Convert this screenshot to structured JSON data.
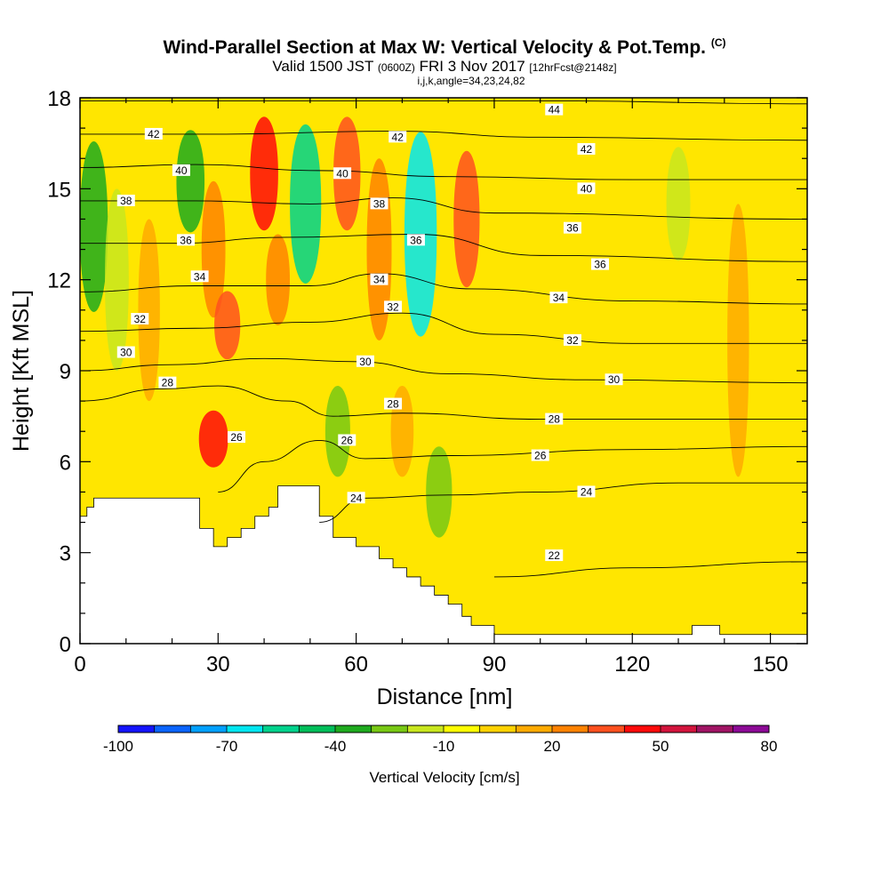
{
  "header": {
    "title": "Wind-Parallel Section at Max W: Vertical Velocity & Pot.Temp.",
    "title_mark": "(C)",
    "valid_prefix": "Valid 1500 JST",
    "valid_utc": "(0600Z)",
    "valid_date": "FRI 3 Nov 2017",
    "forecast": "[12hrFcst@2148z]",
    "grid_info": "i,j,k,angle=34,23,24,82"
  },
  "chart_data": {
    "type": "heatmap",
    "xlabel": "Distance [nm]",
    "ylabel": "Height [Kft MSL]",
    "xlim": [
      0,
      158
    ],
    "ylim": [
      0,
      18
    ],
    "x_ticks": [
      0,
      30,
      60,
      90,
      120,
      150
    ],
    "y_ticks": [
      0,
      3,
      6,
      9,
      12,
      15,
      18
    ],
    "colorbar": {
      "label": "Vertical Velocity [cm/s]",
      "range": [
        -100,
        80
      ],
      "tick_labels": [
        "-100",
        "-70",
        "-40",
        "-10",
        "20",
        "50",
        "80"
      ],
      "colors": [
        "#1414ff",
        "#0a64ff",
        "#00a0ff",
        "#00e6f0",
        "#00d28c",
        "#00be5a",
        "#1eaa1e",
        "#78c814",
        "#c8e61e",
        "#ffff00",
        "#ffd200",
        "#ffaa00",
        "#ff8200",
        "#ff501e",
        "#ff0a0a",
        "#d2143c",
        "#a01464",
        "#8c0a96"
      ]
    },
    "terrain_profile": [
      [
        0,
        4.2
      ],
      [
        1.5,
        4.2
      ],
      [
        1.5,
        4.5
      ],
      [
        3,
        4.5
      ],
      [
        3,
        4.8
      ],
      [
        26,
        4.8
      ],
      [
        26,
        3.8
      ],
      [
        29,
        3.8
      ],
      [
        29,
        3.2
      ],
      [
        32,
        3.2
      ],
      [
        32,
        3.5
      ],
      [
        35,
        3.5
      ],
      [
        35,
        3.8
      ],
      [
        38,
        3.8
      ],
      [
        38,
        4.2
      ],
      [
        41,
        4.2
      ],
      [
        41,
        4.5
      ],
      [
        43,
        4.5
      ],
      [
        43,
        5.2
      ],
      [
        52,
        5.2
      ],
      [
        52,
        4.2
      ],
      [
        55,
        4.2
      ],
      [
        55,
        3.5
      ],
      [
        60,
        3.5
      ],
      [
        60,
        3.2
      ],
      [
        65,
        3.2
      ],
      [
        65,
        2.8
      ],
      [
        68,
        2.8
      ],
      [
        68,
        2.5
      ],
      [
        71,
        2.5
      ],
      [
        71,
        2.2
      ],
      [
        74,
        2.2
      ],
      [
        74,
        1.9
      ],
      [
        77,
        1.9
      ],
      [
        77,
        1.6
      ],
      [
        80,
        1.6
      ],
      [
        80,
        1.3
      ],
      [
        83,
        1.3
      ],
      [
        83,
        0.9
      ],
      [
        85,
        0.9
      ],
      [
        85,
        0.6
      ],
      [
        90,
        0.6
      ],
      [
        90,
        0.3
      ],
      [
        133,
        0.3
      ],
      [
        133,
        0.6
      ],
      [
        139,
        0.6
      ],
      [
        139,
        0.3
      ],
      [
        158,
        0.3
      ]
    ],
    "velocity_field": [
      {
        "x": 3,
        "y_range": [
          10,
          17.5
        ],
        "value": -40
      },
      {
        "x": 8,
        "y_range": [
          8,
          16
        ],
        "value": -20
      },
      {
        "x": 15,
        "y_range": [
          7,
          15
        ],
        "value": 10
      },
      {
        "x": 24,
        "y_range": [
          13,
          17.5
        ],
        "value": -40
      },
      {
        "x": 29,
        "y_range": [
          10,
          16
        ],
        "value": 20
      },
      {
        "x": 29,
        "y_range": [
          5.5,
          8
        ],
        "value": 45
      },
      {
        "x": 32,
        "y_range": [
          9,
          12
        ],
        "value": 30
      },
      {
        "x": 40,
        "y_range": [
          13,
          18
        ],
        "value": 40
      },
      {
        "x": 43,
        "y_range": [
          10,
          14
        ],
        "value": 20
      },
      {
        "x": 49,
        "y_range": [
          11,
          18
        ],
        "value": -55
      },
      {
        "x": 58,
        "y_range": [
          13,
          18
        ],
        "value": 35
      },
      {
        "x": 56,
        "y_range": [
          5,
          9
        ],
        "value": -25
      },
      {
        "x": 65,
        "y_range": [
          9,
          17
        ],
        "value": 25
      },
      {
        "x": 70,
        "y_range": [
          5,
          9
        ],
        "value": 15
      },
      {
        "x": 74,
        "y_range": [
          9,
          18
        ],
        "value": -70
      },
      {
        "x": 84,
        "y_range": [
          11,
          17
        ],
        "value": 30
      },
      {
        "x": 78,
        "y_range": [
          3,
          7
        ],
        "value": -30
      },
      {
        "x": 130,
        "y_range": [
          12,
          17
        ],
        "value": -20
      },
      {
        "x": 143,
        "y_range": [
          4,
          16
        ],
        "value": 10
      }
    ],
    "theta_contours": [
      {
        "label": "22",
        "points": [
          [
            90,
            2.2
          ],
          [
            120,
            2.5
          ],
          [
            158,
            2.7
          ]
        ]
      },
      {
        "label": "24",
        "points": [
          [
            52,
            4.0
          ],
          [
            62,
            4.8
          ],
          [
            80,
            4.9
          ],
          [
            100,
            5.0
          ],
          [
            130,
            5.3
          ],
          [
            158,
            5.3
          ]
        ]
      },
      {
        "label": "26",
        "points": [
          [
            30,
            5.0
          ],
          [
            40,
            6.0
          ],
          [
            52,
            6.7
          ],
          [
            62,
            6.1
          ],
          [
            80,
            6.2
          ],
          [
            120,
            6.4
          ],
          [
            158,
            6.5
          ]
        ]
      },
      {
        "label": "28",
        "points": [
          [
            0,
            8.0
          ],
          [
            18,
            8.4
          ],
          [
            30,
            8.5
          ],
          [
            45,
            8.0
          ],
          [
            55,
            7.5
          ],
          [
            70,
            7.6
          ],
          [
            100,
            7.4
          ],
          [
            158,
            7.4
          ]
        ]
      },
      {
        "label": "30",
        "points": [
          [
            0,
            9.0
          ],
          [
            20,
            9.2
          ],
          [
            40,
            9.4
          ],
          [
            60,
            9.3
          ],
          [
            80,
            8.9
          ],
          [
            110,
            8.7
          ],
          [
            158,
            8.6
          ]
        ]
      },
      {
        "label": "32",
        "points": [
          [
            0,
            10.3
          ],
          [
            25,
            10.4
          ],
          [
            50,
            10.6
          ],
          [
            70,
            10.9
          ],
          [
            90,
            10.2
          ],
          [
            120,
            9.9
          ],
          [
            158,
            9.9
          ]
        ]
      },
      {
        "label": "34",
        "points": [
          [
            0,
            11.6
          ],
          [
            25,
            11.8
          ],
          [
            50,
            11.8
          ],
          [
            65,
            12.2
          ],
          [
            85,
            11.7
          ],
          [
            120,
            11.3
          ],
          [
            158,
            11.2
          ]
        ]
      },
      {
        "label": "36",
        "points": [
          [
            0,
            13.2
          ],
          [
            20,
            13.2
          ],
          [
            45,
            13.4
          ],
          [
            73,
            13.5
          ],
          [
            100,
            12.8
          ],
          [
            158,
            12.6
          ]
        ]
      },
      {
        "label": "38",
        "points": [
          [
            0,
            14.6
          ],
          [
            25,
            14.6
          ],
          [
            50,
            14.5
          ],
          [
            68,
            14.7
          ],
          [
            90,
            14.2
          ],
          [
            158,
            14.0
          ]
        ]
      },
      {
        "label": "40",
        "points": [
          [
            0,
            15.7
          ],
          [
            25,
            15.8
          ],
          [
            52,
            15.6
          ],
          [
            80,
            15.4
          ],
          [
            120,
            15.3
          ],
          [
            158,
            15.3
          ]
        ]
      },
      {
        "label": "42",
        "points": [
          [
            0,
            16.8
          ],
          [
            30,
            16.8
          ],
          [
            68,
            16.9
          ],
          [
            100,
            16.7
          ],
          [
            158,
            16.6
          ]
        ]
      },
      {
        "label": "44",
        "points": [
          [
            0,
            17.9
          ],
          [
            60,
            17.9
          ],
          [
            100,
            17.9
          ],
          [
            158,
            17.8
          ]
        ]
      }
    ],
    "contour_label_positions": [
      {
        "label": "42",
        "x": 16,
        "y": 16.8
      },
      {
        "label": "40",
        "x": 22,
        "y": 15.6
      },
      {
        "label": "38",
        "x": 10,
        "y": 14.6
      },
      {
        "label": "36",
        "x": 23,
        "y": 13.3
      },
      {
        "label": "34",
        "x": 26,
        "y": 12.1
      },
      {
        "label": "32",
        "x": 13,
        "y": 10.7
      },
      {
        "label": "30",
        "x": 10,
        "y": 9.6
      },
      {
        "label": "28",
        "x": 19,
        "y": 8.6
      },
      {
        "label": "26",
        "x": 34,
        "y": 6.8
      },
      {
        "label": "42",
        "x": 69,
        "y": 16.7
      },
      {
        "label": "40",
        "x": 57,
        "y": 15.5
      },
      {
        "label": "38",
        "x": 65,
        "y": 14.5
      },
      {
        "label": "36",
        "x": 73,
        "y": 13.3
      },
      {
        "label": "34",
        "x": 65,
        "y": 12.0
      },
      {
        "label": "32",
        "x": 68,
        "y": 11.1
      },
      {
        "label": "30",
        "x": 62,
        "y": 9.3
      },
      {
        "label": "28",
        "x": 68,
        "y": 7.9
      },
      {
        "label": "26",
        "x": 58,
        "y": 6.7
      },
      {
        "label": "24",
        "x": 60,
        "y": 4.8
      },
      {
        "label": "44",
        "x": 103,
        "y": 17.6
      },
      {
        "label": "42",
        "x": 110,
        "y": 16.3
      },
      {
        "label": "40",
        "x": 110,
        "y": 15.0
      },
      {
        "label": "36",
        "x": 107,
        "y": 13.7
      },
      {
        "label": "36",
        "x": 113,
        "y": 12.5
      },
      {
        "label": "34",
        "x": 104,
        "y": 11.4
      },
      {
        "label": "32",
        "x": 107,
        "y": 10.0
      },
      {
        "label": "30",
        "x": 116,
        "y": 8.7
      },
      {
        "label": "28",
        "x": 103,
        "y": 7.4
      },
      {
        "label": "26",
        "x": 100,
        "y": 6.2
      },
      {
        "label": "24",
        "x": 110,
        "y": 5.0
      },
      {
        "label": "22",
        "x": 103,
        "y": 2.9
      }
    ]
  }
}
